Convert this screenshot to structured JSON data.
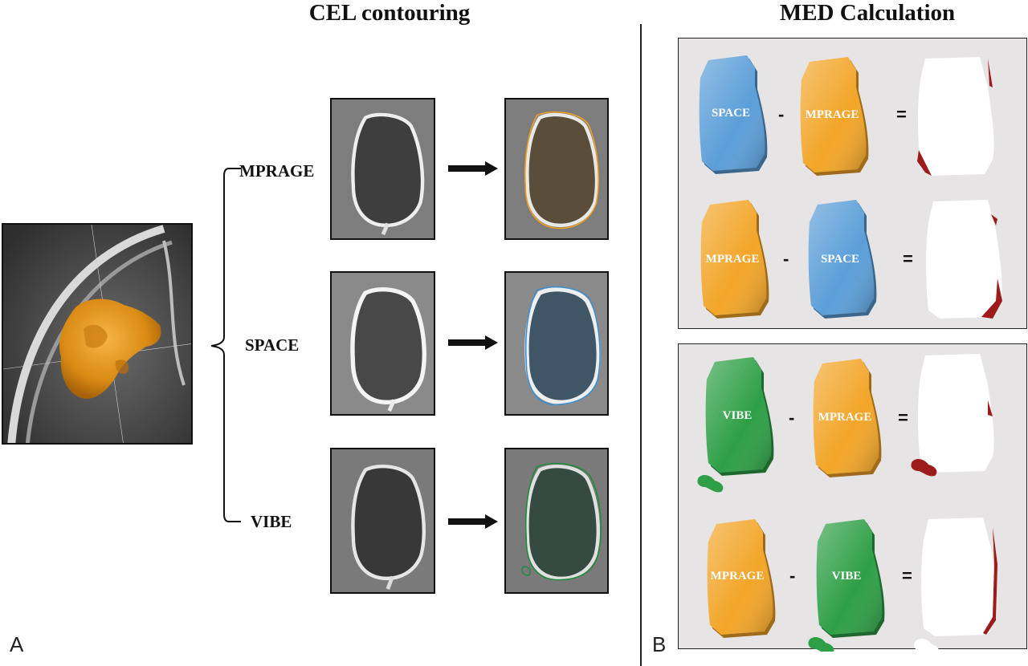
{
  "headings": {
    "cel": "CEL contouring",
    "med": "MED Calculation"
  },
  "panel_letters": {
    "a": "A",
    "b": "B"
  },
  "sequences": [
    "MPRAGE",
    "SPACE",
    "VIBE"
  ],
  "contour_colors": {
    "MPRAGE": "#f0a01e",
    "SPACE": "#3a8fd0",
    "VIBE": "#1e8a3a"
  },
  "shape_colors": {
    "MPRAGE": "#f2a528",
    "SPACE": "#5b9ed8",
    "VIBE": "#2e9f46",
    "residual": "#9e1b1b"
  },
  "equations": [
    {
      "left": "SPACE",
      "right": "MPRAGE",
      "minus": "-",
      "equals": "="
    },
    {
      "left": "MPRAGE",
      "right": "SPACE",
      "minus": "-",
      "equals": "="
    },
    {
      "left": "VIBE",
      "right": "MPRAGE",
      "minus": "-",
      "equals": "="
    },
    {
      "left": "MPRAGE",
      "right": "VIBE",
      "minus": "-",
      "equals": "="
    }
  ]
}
